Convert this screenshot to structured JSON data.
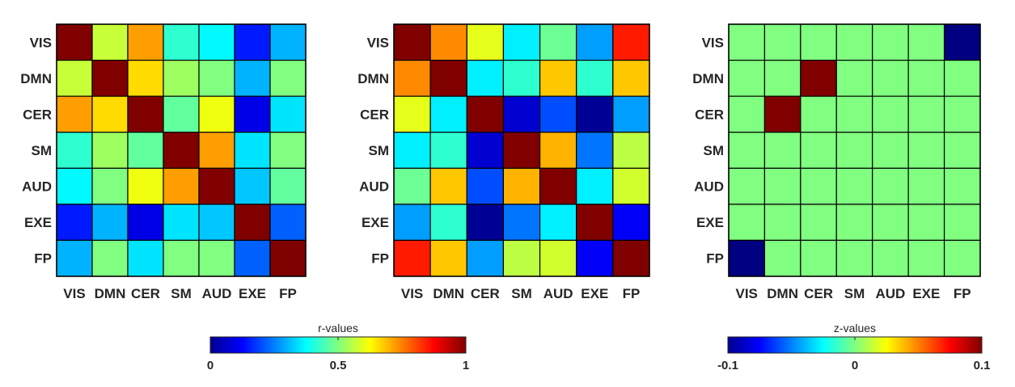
{
  "chart_data": [
    {
      "type": "heatmap",
      "labels": [
        "VIS",
        "DMN",
        "CER",
        "SM",
        "AUD",
        "EXE",
        "FP"
      ],
      "values": [
        [
          1.0,
          0.57,
          0.72,
          0.42,
          0.37,
          0.15,
          0.3
        ],
        [
          0.57,
          1.0,
          0.66,
          0.53,
          0.5,
          0.3,
          0.5
        ],
        [
          0.72,
          0.66,
          1.0,
          0.47,
          0.61,
          0.1,
          0.35
        ],
        [
          0.42,
          0.53,
          0.47,
          1.0,
          0.72,
          0.35,
          0.5
        ],
        [
          0.37,
          0.5,
          0.61,
          0.72,
          1.0,
          0.32,
          0.47
        ],
        [
          0.15,
          0.3,
          0.1,
          0.35,
          0.32,
          1.0,
          0.22
        ],
        [
          0.3,
          0.5,
          0.35,
          0.5,
          0.5,
          0.22,
          1.0
        ]
      ],
      "clim": [
        0,
        1
      ],
      "colormap": "jet"
    },
    {
      "type": "heatmap",
      "labels": [
        "VIS",
        "DMN",
        "CER",
        "SM",
        "AUD",
        "EXE",
        "FP"
      ],
      "values": [
        [
          1.0,
          0.74,
          0.6,
          0.36,
          0.48,
          0.28,
          0.85
        ],
        [
          0.74,
          1.0,
          0.36,
          0.42,
          0.68,
          0.42,
          0.68
        ],
        [
          0.6,
          0.36,
          1.0,
          0.08,
          0.2,
          0.02,
          0.28
        ],
        [
          0.36,
          0.42,
          0.08,
          1.0,
          0.7,
          0.24,
          0.56
        ],
        [
          0.48,
          0.68,
          0.2,
          0.7,
          1.0,
          0.36,
          0.58
        ],
        [
          0.28,
          0.42,
          0.02,
          0.24,
          0.36,
          1.0,
          0.12
        ],
        [
          0.85,
          0.68,
          0.28,
          0.56,
          0.58,
          0.12,
          1.0
        ]
      ],
      "clim": [
        0,
        1
      ],
      "colormap": "jet"
    },
    {
      "type": "heatmap",
      "labels": [
        "VIS",
        "DMN",
        "CER",
        "SM",
        "AUD",
        "EXE",
        "FP"
      ],
      "values": [
        [
          0,
          0,
          0,
          0,
          0,
          0,
          -0.1
        ],
        [
          0,
          0,
          0.1,
          0,
          0,
          0,
          0
        ],
        [
          0,
          0.1,
          0,
          0,
          0,
          0,
          0
        ],
        [
          0,
          0,
          0,
          0,
          0,
          0,
          0
        ],
        [
          0,
          0,
          0,
          0,
          0,
          0,
          0
        ],
        [
          0,
          0,
          0,
          0,
          0,
          0,
          0
        ],
        [
          -0.1,
          0,
          0,
          0,
          0,
          0,
          0
        ]
      ],
      "clim": [
        -0.1,
        0.1
      ],
      "colormap": "jet"
    }
  ],
  "colorbars": [
    {
      "title": "r-values",
      "ticks": [
        "0",
        "0.5",
        "1"
      ],
      "range": [
        0,
        1
      ]
    },
    {
      "title": "z-values",
      "ticks": [
        "-0.1",
        "0",
        "0.1"
      ],
      "range": [
        -0.1,
        0.1
      ]
    }
  ]
}
